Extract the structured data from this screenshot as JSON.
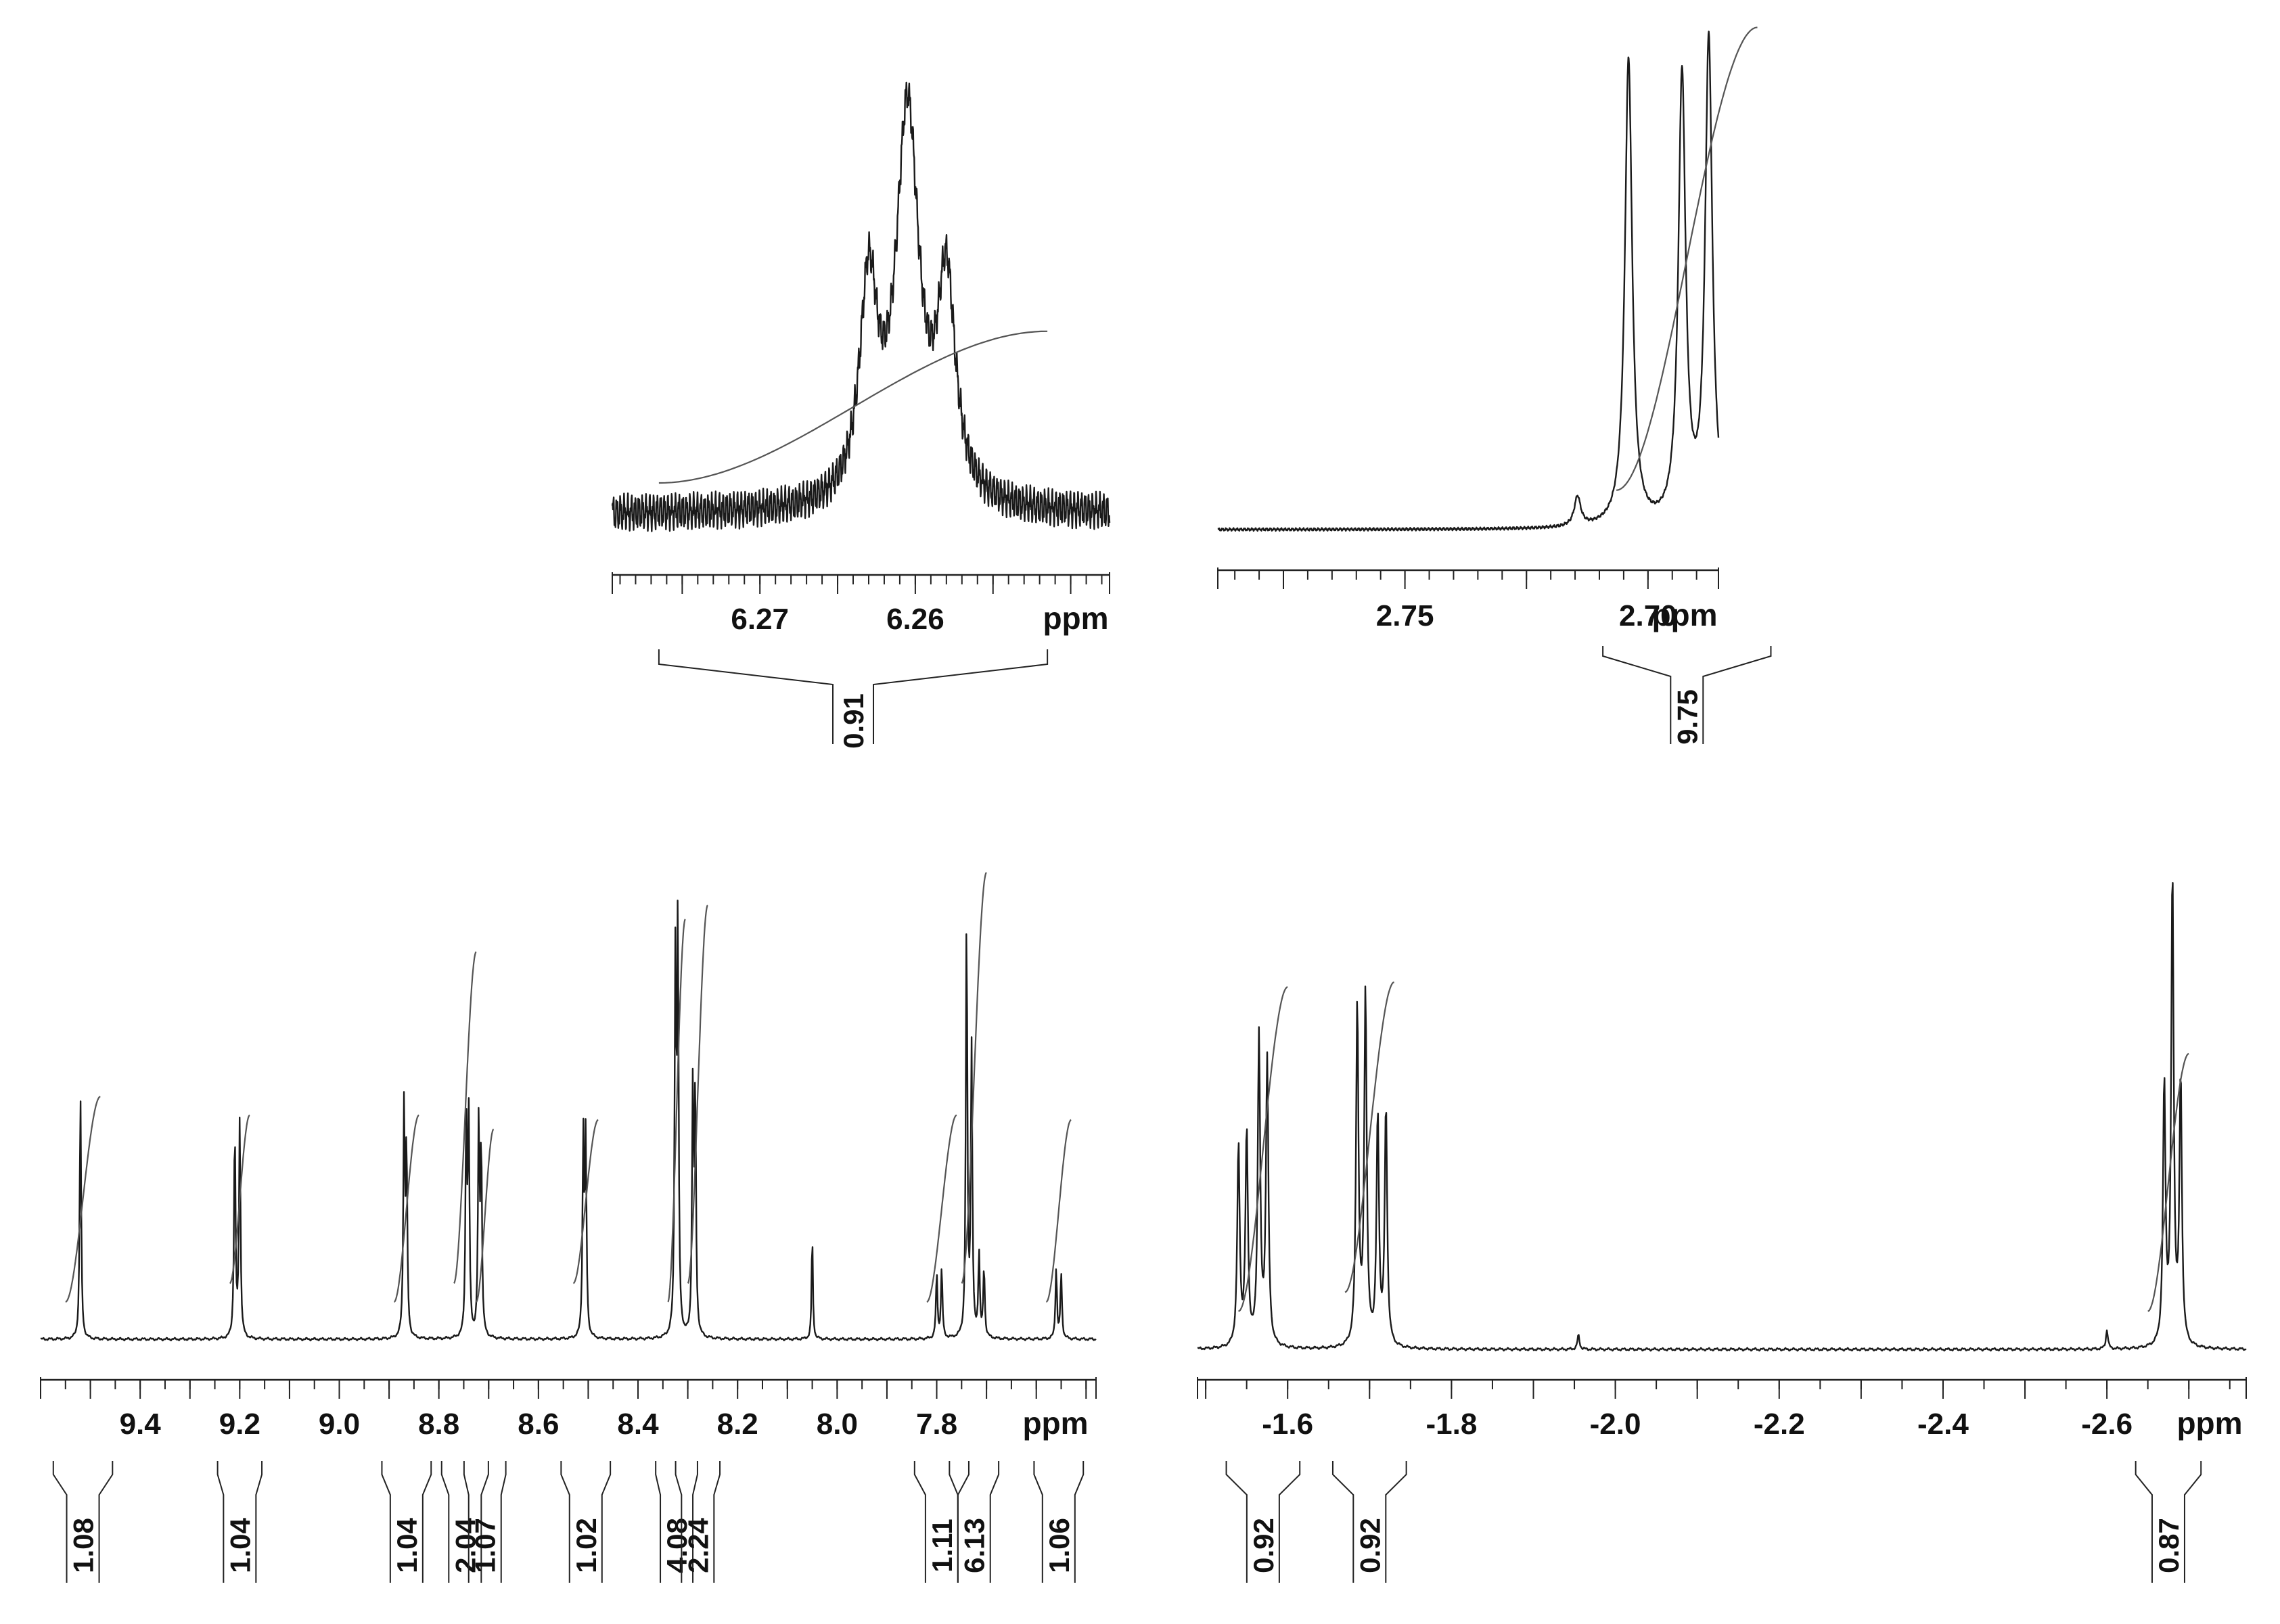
{
  "chart_data": [
    {
      "type": "line",
      "panel": "inset-top-left",
      "xlabel": "ppm",
      "x_range": [
        6.2795,
        6.2475
      ],
      "x_reversed": true,
      "xticks": [
        6.27,
        6.26
      ],
      "ylim": [
        0,
        1
      ],
      "baseline_noise": 0.05,
      "peaks": [
        {
          "x": 6.263,
          "h": 0.55,
          "w": 0.0007
        },
        {
          "x": 6.2605,
          "h": 1.0,
          "w": 0.0009
        },
        {
          "x": 6.258,
          "h": 0.55,
          "w": 0.0007
        }
      ],
      "integrals": [
        {
          "value": "0.91",
          "from": 6.2765,
          "to": 6.2515,
          "level": 0.47
        }
      ]
    },
    {
      "type": "line",
      "panel": "inset-top-right",
      "xlabel": "ppm",
      "x_range": [
        2.7885,
        2.6855
      ],
      "x_reversed": true,
      "xticks": [
        2.75,
        2.7
      ],
      "ylim": [
        0,
        1
      ],
      "baseline_noise": 0.003,
      "peaks": [
        {
          "x": 2.7145,
          "h": 0.06,
          "w": 0.0008
        },
        {
          "x": 2.704,
          "h": 0.95,
          "w": 0.0009
        },
        {
          "x": 2.693,
          "h": 0.91,
          "w": 0.0009
        },
        {
          "x": 2.6875,
          "h": 0.98,
          "w": 0.0009
        },
        {
          "x": 2.6835,
          "h": 0.06,
          "w": 0.0008
        }
      ],
      "integrals": [
        {
          "value": "9.75",
          "from": 2.7065,
          "to": 2.6775,
          "level": 1.02
        }
      ]
    },
    {
      "type": "line",
      "panel": "bottom-left",
      "xlabel": "ppm",
      "x_range": [
        9.6,
        7.48
      ],
      "x_reversed": true,
      "xticks": [
        9.4,
        9.2,
        9.0,
        8.8,
        8.6,
        8.4,
        8.2,
        8.0,
        7.8
      ],
      "ylim": [
        0,
        1
      ],
      "baseline_noise": 0.003,
      "peaks": [
        {
          "x": 9.52,
          "h": 0.52,
          "w": 0.0018
        },
        {
          "x": 9.21,
          "h": 0.45,
          "w": 0.0018
        },
        {
          "x": 9.2,
          "h": 0.47,
          "w": 0.0018
        },
        {
          "x": 8.87,
          "h": 0.49,
          "w": 0.0018
        },
        {
          "x": 8.865,
          "h": 0.4,
          "w": 0.0018
        },
        {
          "x": 8.745,
          "h": 0.47,
          "w": 0.0018
        },
        {
          "x": 8.74,
          "h": 0.46,
          "w": 0.0018
        },
        {
          "x": 8.72,
          "h": 0.45,
          "w": 0.0018
        },
        {
          "x": 8.715,
          "h": 0.4,
          "w": 0.0018
        },
        {
          "x": 8.51,
          "h": 0.43,
          "w": 0.0018
        },
        {
          "x": 8.505,
          "h": 0.42,
          "w": 0.0018
        },
        {
          "x": 8.325,
          "h": 0.78,
          "w": 0.0018
        },
        {
          "x": 8.32,
          "h": 0.88,
          "w": 0.0018
        },
        {
          "x": 8.29,
          "h": 0.52,
          "w": 0.0018
        },
        {
          "x": 8.285,
          "h": 0.52,
          "w": 0.0018
        },
        {
          "x": 8.05,
          "h": 0.23,
          "w": 0.0015
        },
        {
          "x": 7.8,
          "h": 0.14,
          "w": 0.0018
        },
        {
          "x": 7.79,
          "h": 0.15,
          "w": 0.0018
        },
        {
          "x": 7.74,
          "h": 0.9,
          "w": 0.0018
        },
        {
          "x": 7.73,
          "h": 0.62,
          "w": 0.0018
        },
        {
          "x": 7.715,
          "h": 0.18,
          "w": 0.0018
        },
        {
          "x": 7.705,
          "h": 0.15,
          "w": 0.0018
        },
        {
          "x": 7.56,
          "h": 0.15,
          "w": 0.0018
        },
        {
          "x": 7.55,
          "h": 0.14,
          "w": 0.0018
        }
      ],
      "integrals": [
        {
          "value": "1.08",
          "from": 9.55,
          "to": 9.48,
          "level": 0.52
        },
        {
          "value": "1.04",
          "from": 9.22,
          "to": 9.18,
          "level": 0.48
        },
        {
          "value": "1.04",
          "from": 8.89,
          "to": 8.84,
          "level": 0.48
        },
        {
          "value": "2.04",
          "from": 8.77,
          "to": 8.725,
          "level": 0.83
        },
        {
          "value": "1.07",
          "from": 8.725,
          "to": 8.69,
          "level": 0.45
        },
        {
          "value": "1.02",
          "from": 8.53,
          "to": 8.48,
          "level": 0.47
        },
        {
          "value": "4.08",
          "from": 8.34,
          "to": 8.305,
          "level": 0.9
        },
        {
          "value": "2.24",
          "from": 8.3,
          "to": 8.26,
          "level": 0.93
        },
        {
          "value": "1.11",
          "from": 7.82,
          "to": 7.76,
          "level": 0.48
        },
        {
          "value": "6.13",
          "from": 7.75,
          "to": 7.7,
          "level": 1.0
        },
        {
          "value": "1.06",
          "from": 7.58,
          "to": 7.53,
          "level": 0.47
        }
      ]
    },
    {
      "type": "line",
      "panel": "bottom-right",
      "xlabel": "ppm",
      "x_range": [
        -1.49,
        -2.77
      ],
      "x_reversed": true,
      "xticks": [
        -1.6,
        -1.8,
        -2.0,
        -2.2,
        -2.4,
        -2.6
      ],
      "ylim": [
        0,
        1
      ],
      "baseline_noise": 0.003,
      "peaks": [
        {
          "x": -1.54,
          "h": 0.42,
          "w": 0.0018
        },
        {
          "x": -1.55,
          "h": 0.45,
          "w": 0.0018
        },
        {
          "x": -1.565,
          "h": 0.65,
          "w": 0.0018
        },
        {
          "x": -1.575,
          "h": 0.6,
          "w": 0.0018
        },
        {
          "x": -1.685,
          "h": 0.72,
          "w": 0.0018
        },
        {
          "x": -1.695,
          "h": 0.74,
          "w": 0.0018
        },
        {
          "x": -1.71,
          "h": 0.48,
          "w": 0.0018
        },
        {
          "x": -1.72,
          "h": 0.5,
          "w": 0.0018
        },
        {
          "x": -1.955,
          "h": 0.03,
          "w": 0.0015
        },
        {
          "x": -2.6,
          "h": 0.04,
          "w": 0.0015
        },
        {
          "x": -2.67,
          "h": 0.55,
          "w": 0.0018
        },
        {
          "x": -2.68,
          "h": 0.99,
          "w": 0.0018
        },
        {
          "x": -2.69,
          "h": 0.56,
          "w": 0.0018
        }
      ],
      "integrals": [
        {
          "value": "0.92",
          "from": -1.54,
          "to": -1.6,
          "level": 0.76
        },
        {
          "value": "0.92",
          "from": -1.67,
          "to": -1.73,
          "level": 0.77
        },
        {
          "value": "0.87",
          "from": -2.65,
          "to": -2.7,
          "level": 0.62
        }
      ]
    }
  ]
}
